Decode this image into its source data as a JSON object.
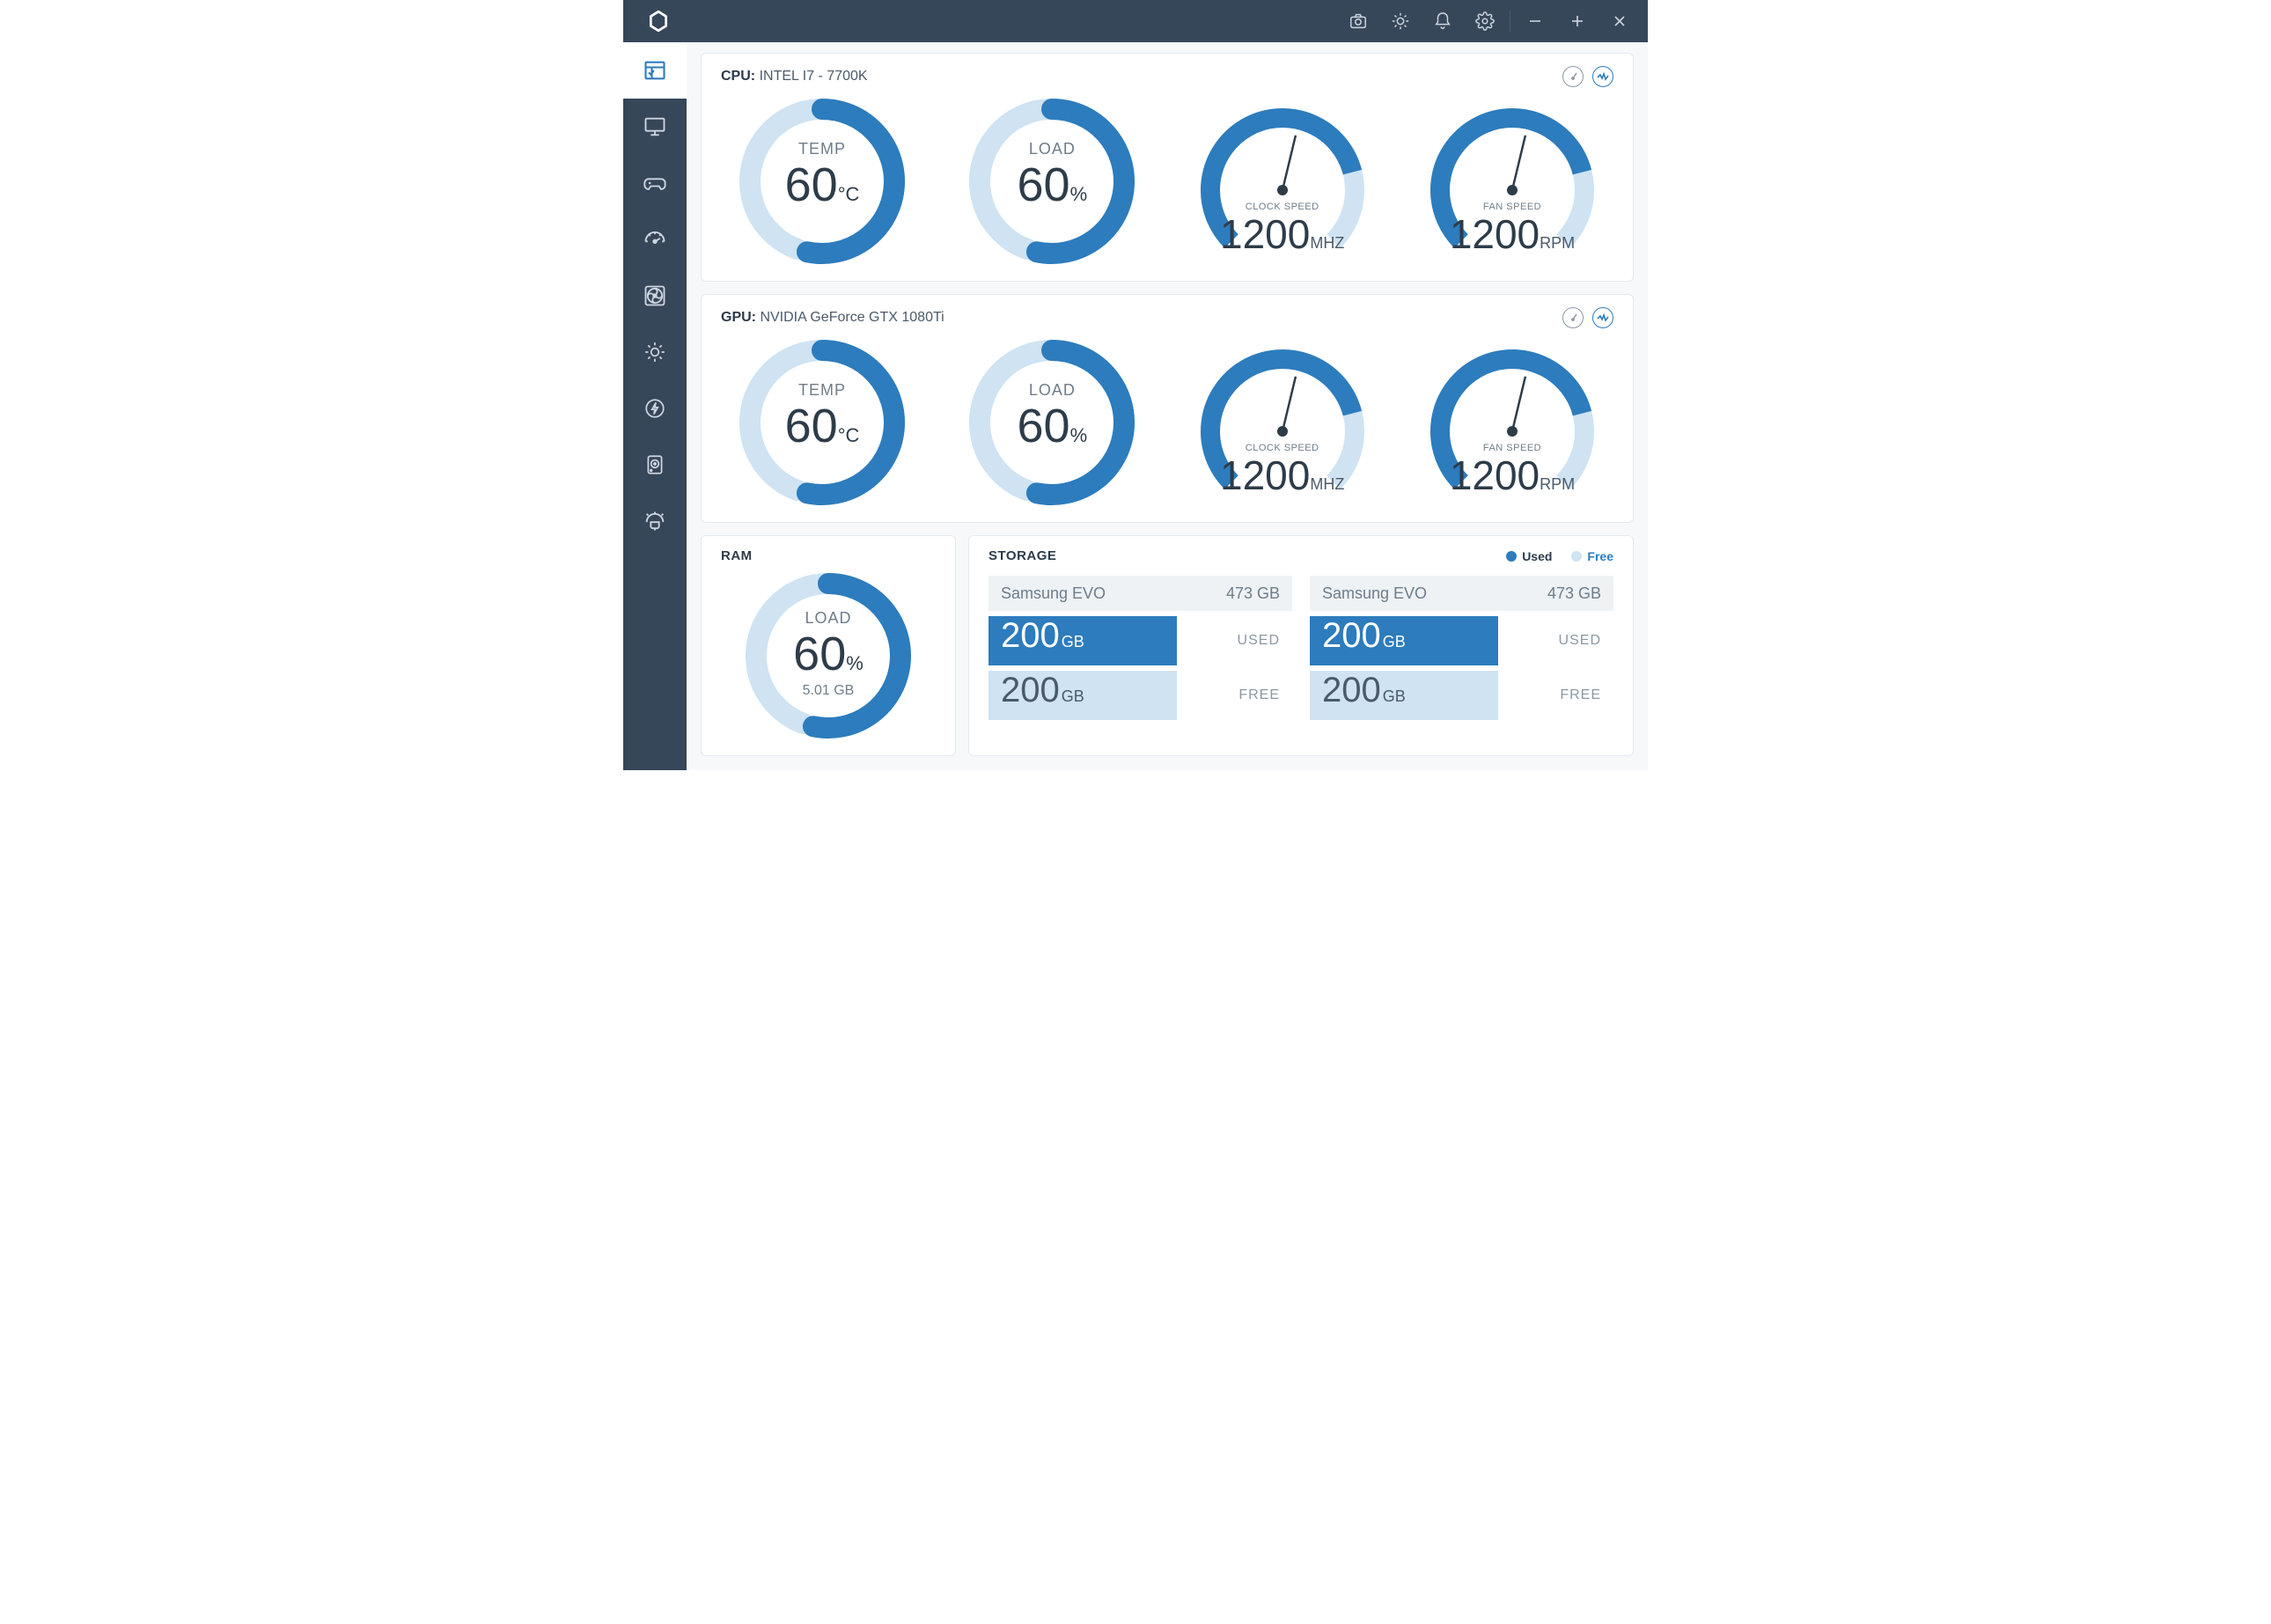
{
  "colors": {
    "titlebar_bg": "#37475a",
    "sidebar_bg": "#37475a",
    "accent": "#2d7cbd",
    "accent_light": "#cfe3f2",
    "panel_border": "#e5eaef",
    "text_dark": "#2e3c49",
    "text_mid": "#6f7d8a"
  },
  "cpu": {
    "label": "CPU:",
    "name": "INTEL I7 - 7700K",
    "temp": {
      "label": "TEMP",
      "value": "60",
      "unit": "°C",
      "percent": 60
    },
    "load": {
      "label": "LOAD",
      "value": "60",
      "unit": "%",
      "percent": 60
    },
    "clock": {
      "label": "CLOCK SPEED",
      "value": "1200",
      "unit": "MHZ",
      "percent": 55
    },
    "fan": {
      "label": "FAN SPEED",
      "value": "1200",
      "unit": "RPM",
      "percent": 55
    }
  },
  "gpu": {
    "label": "GPU:",
    "name": "NVIDIA GeForce GTX 1080Ti",
    "temp": {
      "label": "TEMP",
      "value": "60",
      "unit": "°C",
      "percent": 60
    },
    "load": {
      "label": "LOAD",
      "value": "60",
      "unit": "%",
      "percent": 60
    },
    "clock": {
      "label": "CLOCK SPEED",
      "value": "1200",
      "unit": "MHZ",
      "percent": 55
    },
    "fan": {
      "label": "FAN SPEED",
      "value": "1200",
      "unit": "RPM",
      "percent": 55
    }
  },
  "ram": {
    "title": "RAM",
    "load": {
      "label": "LOAD",
      "value": "60",
      "unit": "%",
      "percent": 60
    },
    "used_text": "5.01 GB"
  },
  "storage": {
    "title": "STORAGE",
    "legend": {
      "used": "Used",
      "free": "Free"
    },
    "drives": [
      {
        "name": "Samsung EVO",
        "total": "473 GB",
        "used": {
          "value": "200",
          "unit": "GB",
          "label": "USED"
        },
        "free": {
          "value": "200",
          "unit": "GB",
          "label": "FREE"
        }
      },
      {
        "name": "Samsung EVO",
        "total": "473 GB",
        "used": {
          "value": "200",
          "unit": "GB",
          "label": "USED"
        },
        "free": {
          "value": "200",
          "unit": "GB",
          "label": "FREE"
        }
      }
    ]
  }
}
